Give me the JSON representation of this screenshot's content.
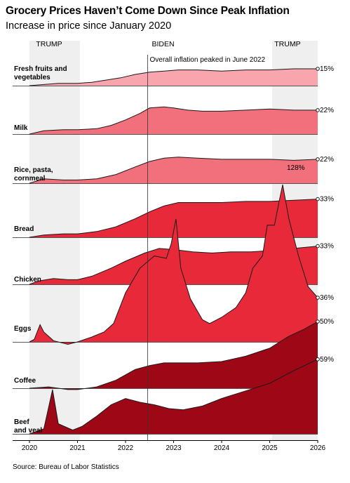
{
  "title": "Grocery Prices Haven’t Come Down Since Peak Inflation",
  "subtitle": "Increase in price since January 2020",
  "source": "Source: Bureau of Labor Statistics",
  "annotations": {
    "eras": [
      {
        "label": "TRUMP",
        "start": 2020.0,
        "end": 2021.05,
        "shaded": true
      },
      {
        "label": "BIDEN",
        "start": 2021.05,
        "end": 2025.05,
        "shaded": false
      },
      {
        "label": "TRUMP",
        "start": 2025.05,
        "end": 2026.0,
        "shaded": true
      }
    ],
    "peak_note": "Overall inflation peaked in June 2022",
    "peak_date": 2022.46,
    "eggs_peak_label": "128%"
  },
  "colors": {
    "era_shading": "#efefef",
    "fruit": "#f8a5ad",
    "milk": "#f2707c",
    "rice": "#f2707c",
    "bread": "#e8293a",
    "chicken": "#e8293a",
    "eggs": "#e8293a",
    "coffee": "#9e0715",
    "beef": "#9e0715",
    "outline": "#1a1a1a"
  },
  "chart_data": {
    "type": "area",
    "xlabel": "",
    "ylabel": "",
    "x_ticks": [
      "2020",
      "2021",
      "2022",
      "2023",
      "2024",
      "2025",
      "2026"
    ],
    "series": [
      {
        "name": "Fresh fruits and vegetables",
        "end_label": "15%",
        "points": [
          [
            2020.0,
            0
          ],
          [
            2020.3,
            1
          ],
          [
            2020.6,
            2
          ],
          [
            2021.0,
            2
          ],
          [
            2021.3,
            3
          ],
          [
            2021.6,
            5
          ],
          [
            2021.9,
            7
          ],
          [
            2022.2,
            10
          ],
          [
            2022.5,
            12
          ],
          [
            2022.8,
            13
          ],
          [
            2023.1,
            14
          ],
          [
            2023.5,
            14
          ],
          [
            2024.0,
            13
          ],
          [
            2024.5,
            14
          ],
          [
            2025.0,
            14
          ],
          [
            2025.5,
            15
          ],
          [
            2026.0,
            15
          ]
        ]
      },
      {
        "name": "Milk",
        "end_label": "22%",
        "points": [
          [
            2020.0,
            0
          ],
          [
            2020.3,
            3
          ],
          [
            2020.7,
            4
          ],
          [
            2021.0,
            4
          ],
          [
            2021.4,
            5
          ],
          [
            2021.7,
            8
          ],
          [
            2022.0,
            13
          ],
          [
            2022.3,
            19
          ],
          [
            2022.5,
            24
          ],
          [
            2022.8,
            25
          ],
          [
            2023.0,
            24
          ],
          [
            2023.3,
            22
          ],
          [
            2023.6,
            21
          ],
          [
            2024.0,
            21
          ],
          [
            2024.5,
            22
          ],
          [
            2025.0,
            23
          ],
          [
            2025.5,
            22
          ],
          [
            2026.0,
            22
          ]
        ]
      },
      {
        "name": "Rice, pasta, cornmeal",
        "end_label": "22%",
        "points": [
          [
            2020.0,
            0
          ],
          [
            2020.3,
            4
          ],
          [
            2020.7,
            3
          ],
          [
            2021.0,
            3
          ],
          [
            2021.4,
            4
          ],
          [
            2021.8,
            8
          ],
          [
            2022.2,
            15
          ],
          [
            2022.5,
            20
          ],
          [
            2022.8,
            23
          ],
          [
            2023.1,
            24
          ],
          [
            2023.5,
            23
          ],
          [
            2024.0,
            22
          ],
          [
            2024.5,
            22
          ],
          [
            2025.0,
            22
          ],
          [
            2025.5,
            21
          ],
          [
            2026.0,
            22
          ]
        ]
      },
      {
        "name": "Bread",
        "end_label": "33%",
        "points": [
          [
            2020.0,
            0
          ],
          [
            2020.3,
            2
          ],
          [
            2020.7,
            3
          ],
          [
            2021.0,
            3
          ],
          [
            2021.4,
            5
          ],
          [
            2021.8,
            9
          ],
          [
            2022.2,
            16
          ],
          [
            2022.5,
            22
          ],
          [
            2022.8,
            27
          ],
          [
            2023.1,
            30
          ],
          [
            2023.5,
            30
          ],
          [
            2024.0,
            30
          ],
          [
            2024.5,
            31
          ],
          [
            2025.0,
            31
          ],
          [
            2025.5,
            32
          ],
          [
            2026.0,
            33
          ]
        ]
      },
      {
        "name": "Chicken",
        "end_label": "33%",
        "points": [
          [
            2020.0,
            0
          ],
          [
            2020.2,
            3
          ],
          [
            2020.5,
            5
          ],
          [
            2020.8,
            4
          ],
          [
            2021.0,
            4
          ],
          [
            2021.3,
            7
          ],
          [
            2021.7,
            14
          ],
          [
            2022.0,
            20
          ],
          [
            2022.4,
            27
          ],
          [
            2022.7,
            31
          ],
          [
            2023.0,
            30
          ],
          [
            2023.4,
            28
          ],
          [
            2023.8,
            27
          ],
          [
            2024.2,
            28
          ],
          [
            2024.6,
            28
          ],
          [
            2025.0,
            29
          ],
          [
            2025.5,
            31
          ],
          [
            2026.0,
            33
          ]
        ]
      },
      {
        "name": "Eggs",
        "end_label": "36%",
        "points": [
          [
            2020.0,
            0
          ],
          [
            2020.1,
            2
          ],
          [
            2020.22,
            14
          ],
          [
            2020.3,
            8
          ],
          [
            2020.5,
            1
          ],
          [
            2020.8,
            -2
          ],
          [
            2021.0,
            0
          ],
          [
            2021.15,
            2
          ],
          [
            2021.3,
            4
          ],
          [
            2021.55,
            8
          ],
          [
            2021.75,
            15
          ],
          [
            2022.0,
            40
          ],
          [
            2022.3,
            60
          ],
          [
            2022.6,
            70
          ],
          [
            2022.85,
            68
          ],
          [
            2022.95,
            80
          ],
          [
            2023.05,
            100
          ],
          [
            2023.15,
            60
          ],
          [
            2023.35,
            35
          ],
          [
            2023.6,
            18
          ],
          [
            2023.75,
            15
          ],
          [
            2024.0,
            20
          ],
          [
            2024.3,
            28
          ],
          [
            2024.5,
            40
          ],
          [
            2024.65,
            60
          ],
          [
            2024.85,
            70
          ],
          [
            2024.95,
            95
          ],
          [
            2025.1,
            95
          ],
          [
            2025.2,
            115
          ],
          [
            2025.27,
            128
          ],
          [
            2025.4,
            100
          ],
          [
            2025.6,
            70
          ],
          [
            2025.8,
            45
          ],
          [
            2026.0,
            36
          ]
        ]
      },
      {
        "name": "Coffee",
        "end_label": "50%",
        "points": [
          [
            2020.0,
            0
          ],
          [
            2020.4,
            1
          ],
          [
            2020.8,
            -1
          ],
          [
            2021.0,
            -1
          ],
          [
            2021.4,
            1
          ],
          [
            2021.8,
            6
          ],
          [
            2022.2,
            14
          ],
          [
            2022.5,
            17
          ],
          [
            2022.8,
            19
          ],
          [
            2023.1,
            19
          ],
          [
            2023.5,
            19
          ],
          [
            2024.0,
            20
          ],
          [
            2024.5,
            24
          ],
          [
            2025.0,
            30
          ],
          [
            2025.4,
            39
          ],
          [
            2025.7,
            44
          ],
          [
            2026.0,
            50
          ]
        ]
      },
      {
        "name": "Beef and veal",
        "end_label": "59%",
        "points": [
          [
            2020.0,
            0
          ],
          [
            2020.3,
            4
          ],
          [
            2020.48,
            35
          ],
          [
            2020.6,
            8
          ],
          [
            2020.9,
            3
          ],
          [
            2021.1,
            6
          ],
          [
            2021.4,
            14
          ],
          [
            2021.7,
            23
          ],
          [
            2022.0,
            28
          ],
          [
            2022.3,
            25
          ],
          [
            2022.6,
            23
          ],
          [
            2022.9,
            20
          ],
          [
            2023.2,
            19
          ],
          [
            2023.6,
            22
          ],
          [
            2024.0,
            28
          ],
          [
            2024.5,
            34
          ],
          [
            2025.0,
            40
          ],
          [
            2025.5,
            50
          ],
          [
            2026.0,
            59
          ]
        ]
      }
    ]
  }
}
